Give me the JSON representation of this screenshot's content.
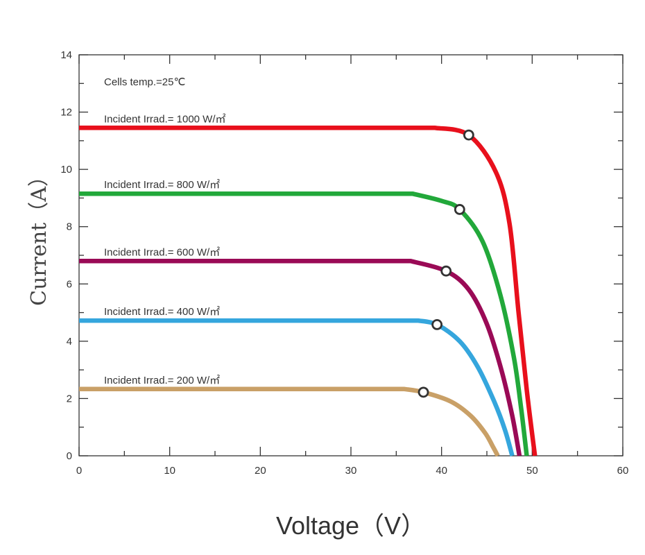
{
  "chart_data": {
    "type": "line",
    "xlabel": "Voltage（V）",
    "ylabel": "Current（A）",
    "xlim": [
      0,
      60
    ],
    "ylim": [
      0,
      14
    ],
    "x_ticks": [
      0,
      10,
      20,
      30,
      40,
      50,
      60
    ],
    "y_ticks": [
      0,
      2,
      4,
      6,
      8,
      10,
      12,
      14
    ],
    "x_minor_step": 5,
    "y_minor_step": 1,
    "grid": false,
    "annotations": [
      "Cells temp.=25℃"
    ],
    "series": [
      {
        "name": "Incident Irrad.= 1000 W/㎡",
        "color": "#e8101c",
        "isc": 11.45,
        "voc": 50.3,
        "knee_v": 39.3,
        "points": [
          [
            0,
            11.45
          ],
          [
            39.3,
            11.45
          ],
          [
            43,
            11.2
          ],
          [
            46,
            9.9
          ],
          [
            47.5,
            8.1
          ],
          [
            48.5,
            5.0
          ],
          [
            49.4,
            2.3
          ],
          [
            50.3,
            0
          ]
        ],
        "mpp": [
          43.0,
          11.2
        ]
      },
      {
        "name": "Incident Irrad.= 800 W/㎡",
        "color": "#22a83a",
        "isc": 9.15,
        "voc": 49.4,
        "knee_v": 36.8,
        "points": [
          [
            0,
            9.15
          ],
          [
            36.8,
            9.15
          ],
          [
            40,
            8.9
          ],
          [
            42,
            8.6
          ],
          [
            44.5,
            7.5
          ],
          [
            46.5,
            5.6
          ],
          [
            48,
            3.4
          ],
          [
            48.8,
            1.6
          ],
          [
            49.4,
            0
          ]
        ],
        "mpp": [
          42.0,
          8.6
        ]
      },
      {
        "name": "Incident Irrad.= 600 W/㎡",
        "color": "#9a0a56",
        "isc": 6.8,
        "voc": 48.6,
        "knee_v": 36.6,
        "points": [
          [
            0,
            6.8
          ],
          [
            36.6,
            6.8
          ],
          [
            40.5,
            6.45
          ],
          [
            43,
            5.8
          ],
          [
            45,
            4.6
          ],
          [
            46.6,
            3.0
          ],
          [
            47.8,
            1.4
          ],
          [
            48.6,
            0
          ]
        ],
        "mpp": [
          40.5,
          6.45
        ]
      },
      {
        "name": "Incident Irrad.= 400 W/㎡",
        "color": "#35a6dd",
        "isc": 4.72,
        "voc": 47.8,
        "knee_v": 37.4,
        "points": [
          [
            0,
            4.72
          ],
          [
            37.4,
            4.72
          ],
          [
            39.5,
            4.58
          ],
          [
            42,
            4.0
          ],
          [
            44,
            3.1
          ],
          [
            45.8,
            1.9
          ],
          [
            47,
            0.9
          ],
          [
            47.8,
            0
          ]
        ],
        "mpp": [
          39.5,
          4.58
        ]
      },
      {
        "name": "Incident Irrad.= 200 W/㎡",
        "color": "#c9a067",
        "isc": 2.33,
        "voc": 46.2,
        "knee_v": 35.9,
        "points": [
          [
            0,
            2.33
          ],
          [
            35.9,
            2.33
          ],
          [
            38,
            2.22
          ],
          [
            41,
            1.9
          ],
          [
            43.2,
            1.4
          ],
          [
            44.8,
            0.8
          ],
          [
            45.7,
            0.3
          ],
          [
            46.2,
            0
          ]
        ],
        "mpp": [
          38.0,
          2.22
        ]
      }
    ]
  }
}
